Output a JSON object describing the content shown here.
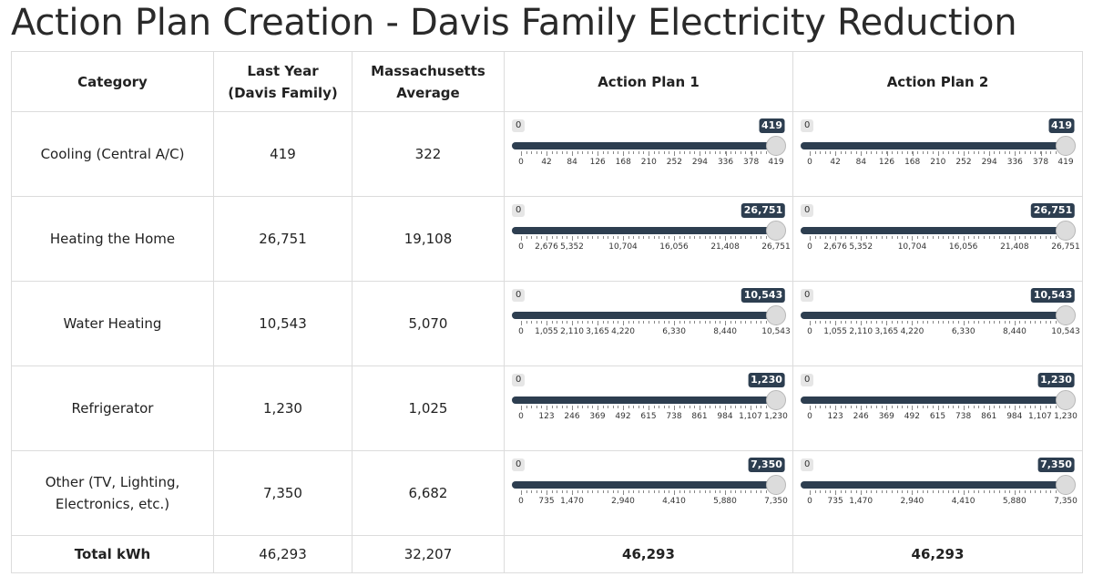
{
  "title": "Action Plan Creation - Davis Family Electricity Reduction",
  "headers": {
    "category": "Category",
    "last_year": "Last Year (Davis Family)",
    "ma_average": "Massachusetts Average",
    "plan1": "Action Plan 1",
    "plan2": "Action Plan 2"
  },
  "rows": [
    {
      "category": "Cooling (Central A/C)",
      "last_year": "419",
      "ma_average": "322",
      "slider": {
        "min": 0,
        "max": 419,
        "min_label": "0",
        "ticks": [
          0,
          42,
          84,
          126,
          168,
          210,
          252,
          294,
          336,
          378,
          419
        ],
        "tick_labels": [
          "0",
          "42",
          "84",
          "126",
          "168",
          "210",
          "252",
          "294",
          "336",
          "378",
          "419"
        ]
      },
      "plan1": {
        "value": 419,
        "value_label": "419"
      },
      "plan2": {
        "value": 419,
        "value_label": "419"
      }
    },
    {
      "category": "Heating the Home",
      "last_year": "26,751",
      "ma_average": "19,108",
      "slider": {
        "min": 0,
        "max": 26751,
        "min_label": "0",
        "ticks": [
          0,
          2676,
          5352,
          10704,
          16056,
          21408,
          26751
        ],
        "tick_labels": [
          "0",
          "2,676",
          "5,352",
          "10,704",
          "16,056",
          "21,408",
          "26,751"
        ]
      },
      "plan1": {
        "value": 26751,
        "value_label": "26,751"
      },
      "plan2": {
        "value": 26751,
        "value_label": "26,751"
      }
    },
    {
      "category": "Water Heating",
      "last_year": "10,543",
      "ma_average": "5,070",
      "slider": {
        "min": 0,
        "max": 10543,
        "min_label": "0",
        "ticks": [
          0,
          1055,
          2110,
          3165,
          4220,
          6330,
          8440,
          10543
        ],
        "tick_labels": [
          "0",
          "1,055",
          "2,110",
          "3,165",
          "4,220",
          "6,330",
          "8,440",
          "10,543"
        ]
      },
      "plan1": {
        "value": 10543,
        "value_label": "10,543"
      },
      "plan2": {
        "value": 10543,
        "value_label": "10,543"
      }
    },
    {
      "category": "Refrigerator",
      "last_year": "1,230",
      "ma_average": "1,025",
      "slider": {
        "min": 0,
        "max": 1230,
        "min_label": "0",
        "ticks": [
          0,
          123,
          246,
          369,
          492,
          615,
          738,
          861,
          984,
          1107,
          1230
        ],
        "tick_labels": [
          "0",
          "123",
          "246",
          "369",
          "492",
          "615",
          "738",
          "861",
          "984",
          "1,107",
          "1,230"
        ]
      },
      "plan1": {
        "value": 1230,
        "value_label": "1,230"
      },
      "plan2": {
        "value": 1230,
        "value_label": "1,230"
      }
    },
    {
      "category": "Other (TV, Lighting, Electronics, etc.)",
      "last_year": "7,350",
      "ma_average": "6,682",
      "slider": {
        "min": 0,
        "max": 7350,
        "min_label": "0",
        "ticks": [
          0,
          735,
          1470,
          2940,
          4410,
          5880,
          7350
        ],
        "tick_labels": [
          "0",
          "735",
          "1,470",
          "2,940",
          "4,410",
          "5,880",
          "7,350"
        ]
      },
      "plan1": {
        "value": 7350,
        "value_label": "7,350"
      },
      "plan2": {
        "value": 7350,
        "value_label": "7,350"
      }
    }
  ],
  "total": {
    "label": "Total kWh",
    "last_year": "46,293",
    "ma_average": "32,207",
    "plan1": "46,293",
    "plan2": "46,293"
  },
  "colors": {
    "slider_fill": "#2d3e50",
    "handle": "#dcdcdc",
    "track": "#e3e3e3"
  }
}
